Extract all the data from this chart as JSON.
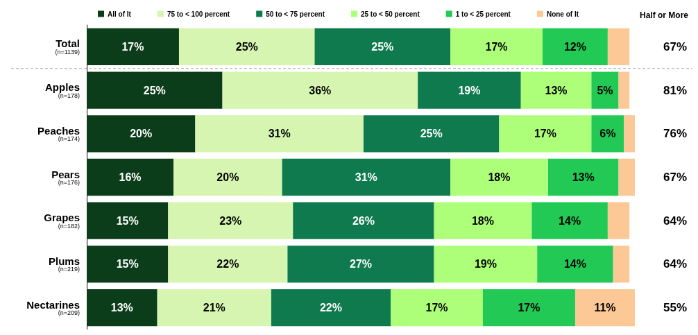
{
  "chart_data": {
    "type": "bar",
    "orientation": "horizontal",
    "stacked": true,
    "legend": "top",
    "categories": [
      "Total\n(n=1139)",
      "Apples\n(n=178)",
      "Peaches\n(n=174)",
      "Pears\n(n=176)",
      "Grapes\n(n=182)",
      "Plums\n(n=219)",
      "Nectarines\n(n=209)"
    ],
    "series": [
      {
        "name": "All of It",
        "color": "#0b3d1a",
        "values": [
          17,
          25,
          20,
          16,
          15,
          15,
          13
        ],
        "value_labels": [
          "17%",
          "25%",
          "20%",
          "16%",
          "15%",
          "15%",
          "13%"
        ]
      },
      {
        "name": "75 to < 100 percent",
        "color": "#d6f5b0",
        "values": [
          25,
          36,
          31,
          20,
          23,
          22,
          21
        ],
        "value_labels": [
          "25%",
          "36%",
          "31%",
          "20%",
          "23%",
          "22%",
          "21%"
        ]
      },
      {
        "name": "50 to < 75 percent",
        "color": "#0e7a4e",
        "values": [
          25,
          19,
          25,
          31,
          26,
          27,
          22
        ],
        "value_labels": [
          "25%",
          "19%",
          "25%",
          "31%",
          "26%",
          "27%",
          "22%"
        ]
      },
      {
        "name": "25 to < 50 percent",
        "color": "#adff7a",
        "values": [
          17,
          13,
          17,
          18,
          18,
          19,
          17
        ],
        "value_labels": [
          "17%",
          "13%",
          "17%",
          "18%",
          "18%",
          "19%",
          "17%"
        ]
      },
      {
        "name": "1 to < 25 percent",
        "color": "#22c955",
        "values": [
          12,
          5,
          6,
          13,
          14,
          14,
          17
        ],
        "value_labels": [
          "12%",
          "5%",
          "6%",
          "13%",
          "14%",
          "14%",
          "17%"
        ]
      },
      {
        "name": "None of It",
        "color": "#fcc896",
        "values": [
          4,
          2,
          2,
          3,
          4,
          3,
          11
        ],
        "value_labels": [
          null,
          null,
          null,
          null,
          null,
          null,
          "11%"
        ]
      }
    ],
    "annotations": [
      "Half or More",
      "67%",
      "81%",
      "76%",
      "67%",
      "64%",
      "64%",
      "55%"
    ]
  }
}
